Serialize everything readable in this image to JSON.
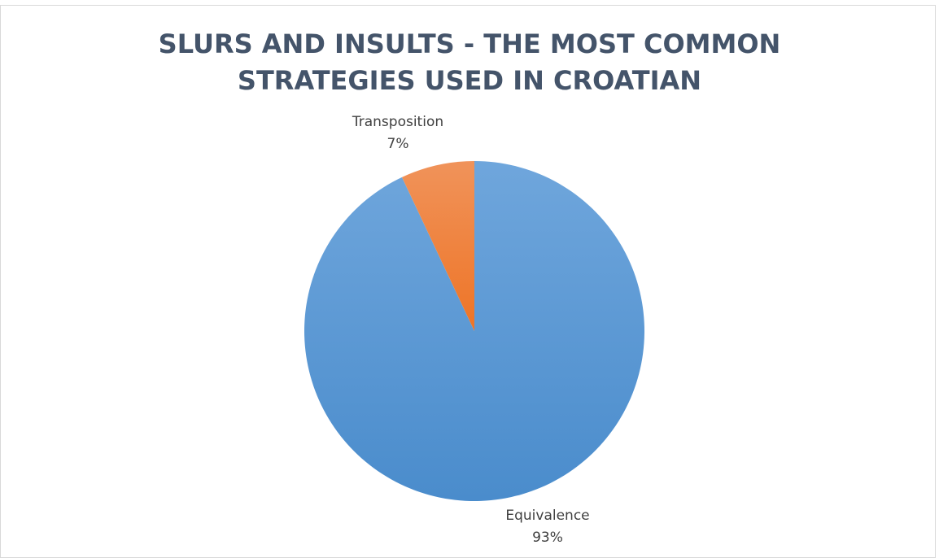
{
  "chart_data": {
    "type": "pie",
    "title": "SLURS AND INSULTS - THE MOST COMMON STRATEGIES USED IN CROATIAN",
    "title_lines": [
      "SLURS AND INSULTS - THE MOST COMMON",
      "STRATEGIES USED IN CROATIAN"
    ],
    "categories": [
      "Equivalence",
      "Transposition"
    ],
    "values": [
      93,
      7
    ],
    "labels": [
      "93%",
      "7%"
    ],
    "colors": [
      "#5b9bd5",
      "#ed7d31"
    ],
    "legend": "none"
  }
}
